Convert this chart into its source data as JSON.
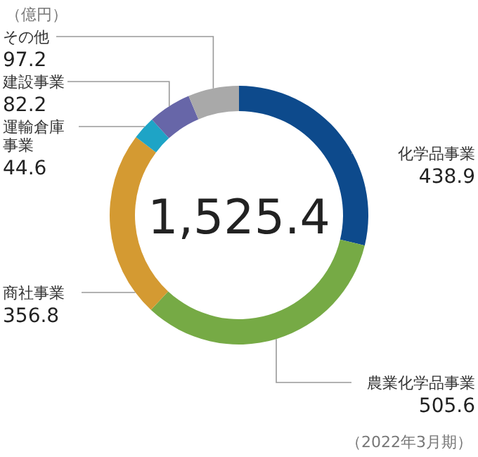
{
  "chart_data": {
    "type": "donut",
    "categories": [
      "化学品事業",
      "農業化学品事業",
      "商社事業",
      "運輸倉庫事業",
      "建設事業",
      "その他"
    ],
    "values": [
      438.9,
      505.6,
      356.8,
      44.6,
      82.2,
      97.2
    ],
    "colors": [
      "#0d4a8c",
      "#76aa45",
      "#d49a32",
      "#1ea4c6",
      "#6766a8",
      "#a9a9a9"
    ],
    "data_labels": true,
    "annotations": [
      "（億円）",
      "1,525.4",
      "（2022年3月期）"
    ]
  }
}
